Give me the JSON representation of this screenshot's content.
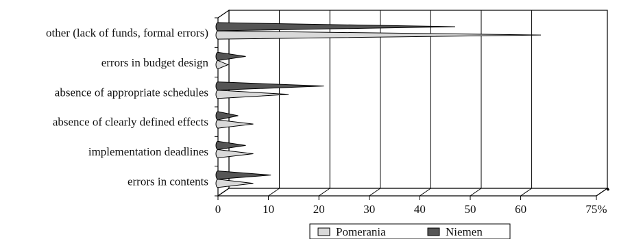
{
  "chart_data": {
    "type": "bar",
    "bar_style": "3d-cone",
    "orientation": "horizontal",
    "categories": [
      "errors in contents",
      "implementation deadlines",
      "absence of clearly defined effects",
      "absence of appropriate schedules",
      "errors in budget design",
      "other (lack of funds, formal errors)"
    ],
    "series": [
      {
        "name": "Pomerania",
        "values": [
          7,
          7,
          7,
          14,
          2,
          64
        ],
        "color": "#d9d9d9"
      },
      {
        "name": "Niemen",
        "values": [
          10.5,
          5.5,
          4,
          21,
          5.5,
          47
        ],
        "color": "#555555"
      }
    ],
    "x_tick_labels": [
      "0",
      "10",
      "20",
      "30",
      "40",
      "50",
      "60",
      "75%"
    ],
    "xlim": [
      0,
      75
    ],
    "grid": "vertical",
    "legend": "bottom",
    "colors": {
      "pomerania": "#d9d9d9",
      "niemen": "#555555",
      "grid": "#000000",
      "wall": "#ffffff"
    }
  }
}
